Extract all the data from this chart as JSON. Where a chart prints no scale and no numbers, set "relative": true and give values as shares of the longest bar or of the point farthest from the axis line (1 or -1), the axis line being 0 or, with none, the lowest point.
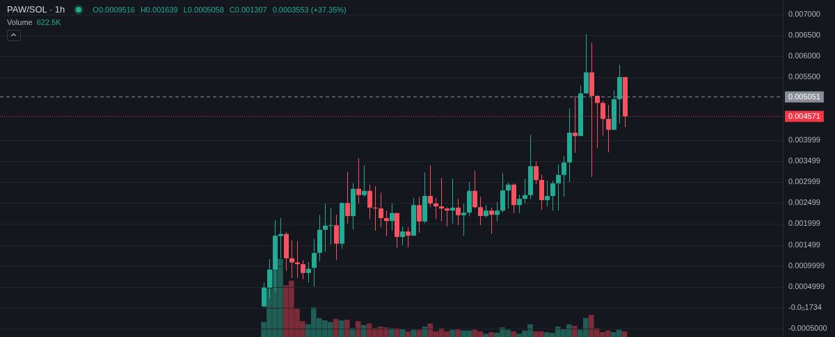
{
  "chart_data": [
    {
      "type": "candlestick",
      "title": "PAW/SOL · 1h",
      "annotations": [
        "O0.0009516",
        "H0.001639",
        "L0.0005058",
        "C0.001307",
        "0.0003553 (+37.35%)",
        "Volume",
        "622.5K"
      ],
      "categories": [
        null,
        null,
        null,
        null,
        null,
        null,
        null,
        null,
        null,
        null,
        null,
        null,
        null,
        null,
        null,
        null,
        null,
        null,
        null,
        null,
        null,
        null,
        null,
        null,
        null,
        null,
        null,
        null,
        null,
        null,
        null,
        null,
        null,
        null,
        null,
        null,
        null,
        null,
        null,
        null,
        null,
        null,
        null,
        null,
        null,
        null,
        null,
        null,
        null,
        null,
        null,
        null,
        null,
        null,
        null,
        null,
        null,
        null,
        null,
        null,
        null,
        null,
        null,
        null,
        null,
        null,
        null,
        null,
        null,
        null,
        null,
        null,
        null,
        null,
        null,
        null,
        null,
        null,
        null,
        null,
        null,
        null,
        null,
        null,
        null,
        null,
        null,
        null,
        null,
        null,
        null,
        null,
        null,
        null,
        null,
        null,
        null,
        null,
        null,
        null,
        null,
        null,
        null,
        null,
        null,
        null,
        null,
        null,
        null,
        null,
        null,
        null,
        null,
        null,
        null,
        null,
        null,
        null,
        null,
        null,
        null,
        null,
        null,
        null,
        null,
        null,
        null,
        null,
        null,
        null,
        null,
        null,
        null,
        null,
        null,
        null,
        null,
        null,
        null,
        null,
        null
      ],
      "ohlc": [
        null,
        null,
        null,
        null,
        null,
        null,
        null,
        null,
        null,
        null,
        null,
        null,
        null,
        null,
        null,
        null,
        null,
        null,
        null,
        null,
        null,
        null,
        null,
        null,
        null,
        null,
        null,
        null,
        null,
        null,
        null,
        null,
        null,
        null,
        null,
        null,
        null,
        null,
        null,
        null,
        null,
        null,
        null,
        null,
        null,
        null,
        null,
        [
          3e-05,
          0.0006,
          1e-05,
          0.00048
        ],
        [
          0.00048,
          0.00116,
          0.00022,
          0.00091
        ],
        [
          0.00091,
          0.00209,
          0.00038,
          0.00172
        ],
        [
          0.00171,
          0.00214,
          0.00118,
          0.00176
        ],
        [
          0.00176,
          0.00181,
          0.00088,
          0.00118
        ],
        [
          0.00118,
          0.00161,
          0.00071,
          0.00108
        ],
        [
          0.00108,
          0.00159,
          0.00071,
          0.00104
        ],
        [
          0.00104,
          0.00113,
          0.00068,
          0.00083
        ],
        [
          0.00083,
          0.00109,
          0.0006,
          0.00093
        ],
        [
          0.0009516,
          0.001639,
          0.0005058,
          0.001307
        ],
        [
          0.00131,
          0.00222,
          0.00111,
          0.00186
        ],
        [
          0.00186,
          0.00249,
          0.00133,
          0.00196
        ],
        [
          0.00196,
          0.00239,
          0.00151,
          0.00197
        ],
        [
          0.00197,
          0.00222,
          0.00114,
          0.00153
        ],
        [
          0.00153,
          0.00252,
          0.00141,
          0.0025
        ],
        [
          0.0025,
          0.00325,
          0.00201,
          0.00219
        ],
        [
          0.00219,
          0.00297,
          0.00187,
          0.00284
        ],
        [
          0.00284,
          0.00357,
          0.00249,
          0.00269
        ],
        [
          0.00269,
          0.0034,
          0.00265,
          0.00279
        ],
        [
          0.00279,
          0.00294,
          0.00212,
          0.00239
        ],
        [
          0.00239,
          0.0029,
          0.00184,
          0.00237
        ],
        [
          0.00237,
          0.00275,
          0.00192,
          0.00214
        ],
        [
          0.00214,
          0.00232,
          0.00171,
          0.00207
        ],
        [
          0.00207,
          0.00249,
          0.00184,
          0.00226
        ],
        [
          0.00226,
          0.00227,
          0.00143,
          0.00169
        ],
        [
          0.00169,
          0.00194,
          0.00149,
          0.00182
        ],
        [
          0.00182,
          0.00192,
          0.00144,
          0.00172
        ],
        [
          0.00172,
          0.00262,
          0.00172,
          0.00245
        ],
        [
          0.00245,
          0.00265,
          0.00179,
          0.00206
        ],
        [
          0.00206,
          0.00323,
          0.00202,
          0.00267
        ],
        [
          0.00267,
          0.0034,
          0.0024,
          0.00249
        ],
        [
          0.00249,
          0.00262,
          0.00212,
          0.00242
        ],
        [
          0.00242,
          0.0031,
          0.00206,
          0.00237
        ],
        [
          0.00237,
          0.0024,
          0.00194,
          0.00232
        ],
        [
          0.00232,
          0.00308,
          0.00201,
          0.00239
        ],
        [
          0.00239,
          0.0026,
          0.00197,
          0.00221
        ],
        [
          0.00221,
          0.00249,
          0.00172,
          0.00227
        ],
        [
          0.00227,
          0.003,
          0.00219,
          0.00279
        ],
        [
          0.00279,
          0.00327,
          0.00237,
          0.0024
        ],
        [
          0.0024,
          0.00265,
          0.00197,
          0.00219
        ],
        [
          0.00219,
          0.00245,
          0.00216,
          0.00232
        ],
        [
          0.00232,
          0.00239,
          0.00176,
          0.00222
        ],
        [
          0.00222,
          0.00252,
          0.00206,
          0.00232
        ],
        [
          0.00232,
          0.00322,
          0.00227,
          0.0028
        ],
        [
          0.0028,
          0.00299,
          0.00237,
          0.00294
        ],
        [
          0.00294,
          0.00297,
          0.00226,
          0.00245
        ],
        [
          0.00245,
          0.0027,
          0.00226,
          0.0026
        ],
        [
          0.0026,
          0.00307,
          0.00249,
          0.00269
        ],
        [
          0.00269,
          0.00413,
          0.00259,
          0.00338
        ],
        [
          0.00338,
          0.0035,
          0.00295,
          0.00305
        ],
        [
          0.00305,
          0.00318,
          0.00234,
          0.00257
        ],
        [
          0.00257,
          0.00303,
          0.00242,
          0.00267
        ],
        [
          0.00267,
          0.00303,
          0.00232,
          0.00297
        ],
        [
          0.00297,
          0.00342,
          0.00232,
          0.00317
        ],
        [
          0.00317,
          0.00362,
          0.00265,
          0.00347
        ],
        [
          0.00347,
          0.00476,
          0.003,
          0.00418
        ],
        [
          0.00418,
          0.00506,
          0.0037,
          0.0041
        ],
        [
          0.0041,
          0.00531,
          0.0041,
          0.00512
        ],
        [
          0.00512,
          0.00653,
          0.00511,
          0.00562
        ],
        [
          0.00562,
          0.00633,
          0.00312,
          0.00506
        ],
        [
          0.00506,
          0.00507,
          0.00381,
          0.00489
        ],
        [
          0.00489,
          0.00494,
          0.00411,
          0.00451
        ],
        [
          0.00451,
          0.00484,
          0.00371,
          0.00425
        ],
        [
          0.00425,
          0.00519,
          0.00425,
          0.00498
        ],
        [
          0.00498,
          0.0058,
          0.0044,
          0.00551
        ],
        [
          0.00551,
          0.00551,
          0.00431,
          0.004571
        ],
        null,
        null,
        null,
        null,
        null,
        null,
        null,
        null,
        null,
        null,
        null,
        null,
        null,
        null,
        null,
        null,
        null,
        null,
        null,
        null,
        null,
        null,
        null,
        null,
        null,
        null,
        null,
        null
      ],
      "colors": [
        null,
        null,
        null,
        null,
        null,
        null,
        null,
        null,
        null,
        null,
        null,
        null,
        null,
        null,
        null,
        null,
        null,
        null,
        null,
        null,
        null,
        null,
        null,
        null,
        null,
        null,
        null,
        null,
        null,
        null,
        null,
        null,
        null,
        null,
        null,
        null,
        null,
        null,
        null,
        null,
        null,
        null,
        null,
        null,
        null,
        null,
        null,
        "#22ab94",
        "#22ab94",
        "#22ab94",
        "#22ab94",
        "#f7525f",
        "#f7525f",
        "#f7525f",
        "#f7525f",
        "#22ab94",
        "#22ab94",
        "#22ab94",
        "#22ab94",
        "#22ab94",
        "#f7525f",
        "#22ab94",
        "#f7525f",
        "#22ab94",
        "#f7525f",
        "#22ab94",
        "#f7525f",
        "#f7525f",
        "#f7525f",
        "#f7525f",
        "#22ab94",
        "#f7525f",
        "#22ab94",
        "#f7525f",
        "#22ab94",
        "#f7525f",
        "#22ab94",
        "#f7525f",
        "#f7525f",
        "#f7525f",
        "#f7525f",
        "#22ab94",
        "#f7525f",
        "#22ab94",
        "#22ab94",
        "#f7525f",
        "#f7525f",
        "#22ab94",
        "#f7525f",
        "#22ab94",
        "#22ab94",
        "#22ab94",
        "#f7525f",
        "#22ab94",
        "#22ab94",
        "#22ab94",
        "#f7525f",
        "#f7525f",
        "#22ab94",
        "#22ab94",
        "#22ab94",
        "#22ab94",
        "#22ab94",
        "#f7525f",
        "#22ab94",
        "#22ab94",
        "#f7525f",
        "#f7525f",
        "#f7525f",
        "#f7525f",
        "#22ab94",
        "#22ab94",
        "#f7525f",
        null,
        null,
        null,
        null,
        null,
        null,
        null,
        null,
        null,
        null,
        null,
        null,
        null,
        null,
        null,
        null,
        null,
        null,
        null,
        null,
        null,
        null,
        null,
        null,
        null,
        null,
        null,
        null
      ],
      "ylim": [
        -0.0007,
        0.00735
      ],
      "yticks": [
        {
          "value": 0.007,
          "label": "0.007000"
        },
        {
          "value": 0.0065,
          "label": "0.006500"
        },
        {
          "value": 0.006,
          "label": "0.006000"
        },
        {
          "value": 0.0055,
          "label": "0.005500"
        },
        {
          "value": 0.003999,
          "label": "0.003999"
        },
        {
          "value": 0.003499,
          "label": "0.003499"
        },
        {
          "value": 0.002999,
          "label": "0.002999"
        },
        {
          "value": 0.002499,
          "label": "0.002499"
        },
        {
          "value": 0.001999,
          "label": "0.001999"
        },
        {
          "value": 0.001499,
          "label": "0.001499"
        },
        {
          "value": 0.0009999,
          "label": "0.0009999"
        },
        {
          "value": 0.0004999,
          "label": "0.0004999"
        },
        {
          "value": 0,
          "label": "-0.0₀1734"
        },
        {
          "value": -0.0005,
          "label": "-0.0005000"
        }
      ],
      "ref_lines": [
        {
          "axis": "y",
          "value": 0.005051,
          "label": "0.005051",
          "color": "#8a8e99",
          "line_style": "dashed"
        },
        {
          "axis": "y",
          "value": 0.004571,
          "label": "0.004571",
          "color": "#f23645",
          "line_style": "dotted"
        }
      ],
      "grid": "y",
      "legend": false
    },
    {
      "type": "bar",
      "relative": true,
      "categories": [
        null,
        null,
        null,
        null,
        null,
        null,
        null,
        null,
        null,
        null,
        null,
        null,
        null,
        null,
        null,
        null,
        null,
        null,
        null,
        null,
        null,
        null,
        null,
        null,
        null,
        null,
        null,
        null,
        null,
        null,
        null,
        null,
        null,
        null,
        null,
        null,
        null,
        null,
        null,
        null,
        null,
        null,
        null,
        null,
        null,
        null,
        null,
        null,
        null,
        null,
        null,
        null,
        null,
        null,
        null,
        null,
        null,
        null,
        null,
        null,
        null,
        null,
        null,
        null,
        null,
        null,
        null,
        null,
        null,
        null,
        null,
        null,
        null,
        null,
        null,
        null,
        null,
        null,
        null,
        null,
        null,
        null,
        null,
        null,
        null,
        null,
        null,
        null,
        null,
        null,
        null,
        null,
        null,
        null,
        null,
        null,
        null,
        null,
        null,
        null,
        null,
        null,
        null,
        null,
        null,
        null,
        null,
        null,
        null,
        null,
        null,
        null,
        null,
        null,
        null,
        null,
        null,
        null,
        null,
        null,
        null,
        null,
        null,
        null,
        null,
        null,
        null,
        null,
        null,
        null,
        null,
        null,
        null,
        null,
        null,
        null,
        null,
        null,
        null,
        null,
        null
      ],
      "values": [
        null,
        null,
        null,
        null,
        null,
        null,
        null,
        null,
        null,
        null,
        null,
        null,
        null,
        null,
        null,
        null,
        null,
        null,
        null,
        null,
        null,
        null,
        null,
        null,
        null,
        null,
        null,
        null,
        null,
        null,
        null,
        null,
        null,
        null,
        null,
        null,
        null,
        null,
        null,
        null,
        null,
        null,
        null,
        null,
        null,
        null,
        null,
        0.19,
        0.62,
        0.86,
        1,
        0.66,
        0.72,
        0.36,
        0.2,
        0.16,
        0.38,
        0.24,
        0.21,
        0.19,
        0.23,
        0.21,
        0.22,
        0.11,
        0.2,
        0.15,
        0.17,
        0.11,
        0.13,
        0.12,
        0.11,
        0.11,
        0.1,
        0.07,
        0.09,
        0.09,
        0.13,
        0.17,
        0.07,
        0.11,
        0.07,
        0.09,
        0.1,
        0.08,
        0.08,
        0.09,
        0.07,
        0.04,
        0.06,
        0.05,
        0.12,
        0.09,
        0.07,
        0.04,
        0.08,
        0.16,
        0.07,
        0.07,
        0.06,
        0.05,
        0.13,
        0.1,
        0.16,
        0.14,
        0.09,
        0.24,
        0.28,
        0.11,
        0.06,
        0.08,
        0.06,
        0.09,
        0.07,
        null,
        null,
        null,
        null,
        null,
        null,
        null,
        null,
        null,
        null,
        null,
        null,
        null,
        null,
        null,
        null,
        null,
        null,
        null,
        null,
        null,
        null,
        null,
        null,
        null,
        null,
        null,
        null
      ],
      "colors": [
        null,
        null,
        null,
        null,
        null,
        null,
        null,
        null,
        null,
        null,
        null,
        null,
        null,
        null,
        null,
        null,
        null,
        null,
        null,
        null,
        null,
        null,
        null,
        null,
        null,
        null,
        null,
        null,
        null,
        null,
        null,
        null,
        null,
        null,
        null,
        null,
        null,
        null,
        null,
        null,
        null,
        null,
        null,
        null,
        null,
        null,
        null,
        "#1f5d55",
        "#1f5d55",
        "#1f5d55",
        "#1f5d55",
        "#7a2d39",
        "#7a2d39",
        "#7a2d39",
        "#7a2d39",
        "#1f5d55",
        "#1f5d55",
        "#1f5d55",
        "#1f5d55",
        "#1f5d55",
        "#7a2d39",
        "#1f5d55",
        "#7a2d39",
        "#1f5d55",
        "#7a2d39",
        "#1f5d55",
        "#7a2d39",
        "#7a2d39",
        "#7a2d39",
        "#7a2d39",
        "#1f5d55",
        "#7a2d39",
        "#1f5d55",
        "#7a2d39",
        "#1f5d55",
        "#7a2d39",
        "#1f5d55",
        "#7a2d39",
        "#7a2d39",
        "#7a2d39",
        "#7a2d39",
        "#1f5d55",
        "#7a2d39",
        "#1f5d55",
        "#1f5d55",
        "#7a2d39",
        "#7a2d39",
        "#1f5d55",
        "#7a2d39",
        "#1f5d55",
        "#1f5d55",
        "#1f5d55",
        "#7a2d39",
        "#1f5d55",
        "#1f5d55",
        "#1f5d55",
        "#7a2d39",
        "#7a2d39",
        "#1f5d55",
        "#1f5d55",
        "#1f5d55",
        "#1f5d55",
        "#1f5d55",
        "#7a2d39",
        "#1f5d55",
        "#1f5d55",
        "#7a2d39",
        "#7a2d39",
        "#7a2d39",
        "#7a2d39",
        "#1f5d55",
        "#1f5d55",
        "#7a2d39",
        null,
        null,
        null,
        null,
        null,
        null,
        null,
        null,
        null,
        null,
        null,
        null,
        null,
        null,
        null,
        null,
        null,
        null,
        null,
        null,
        null,
        null,
        null,
        null,
        null,
        null,
        null,
        null
      ],
      "legend": false
    }
  ]
}
